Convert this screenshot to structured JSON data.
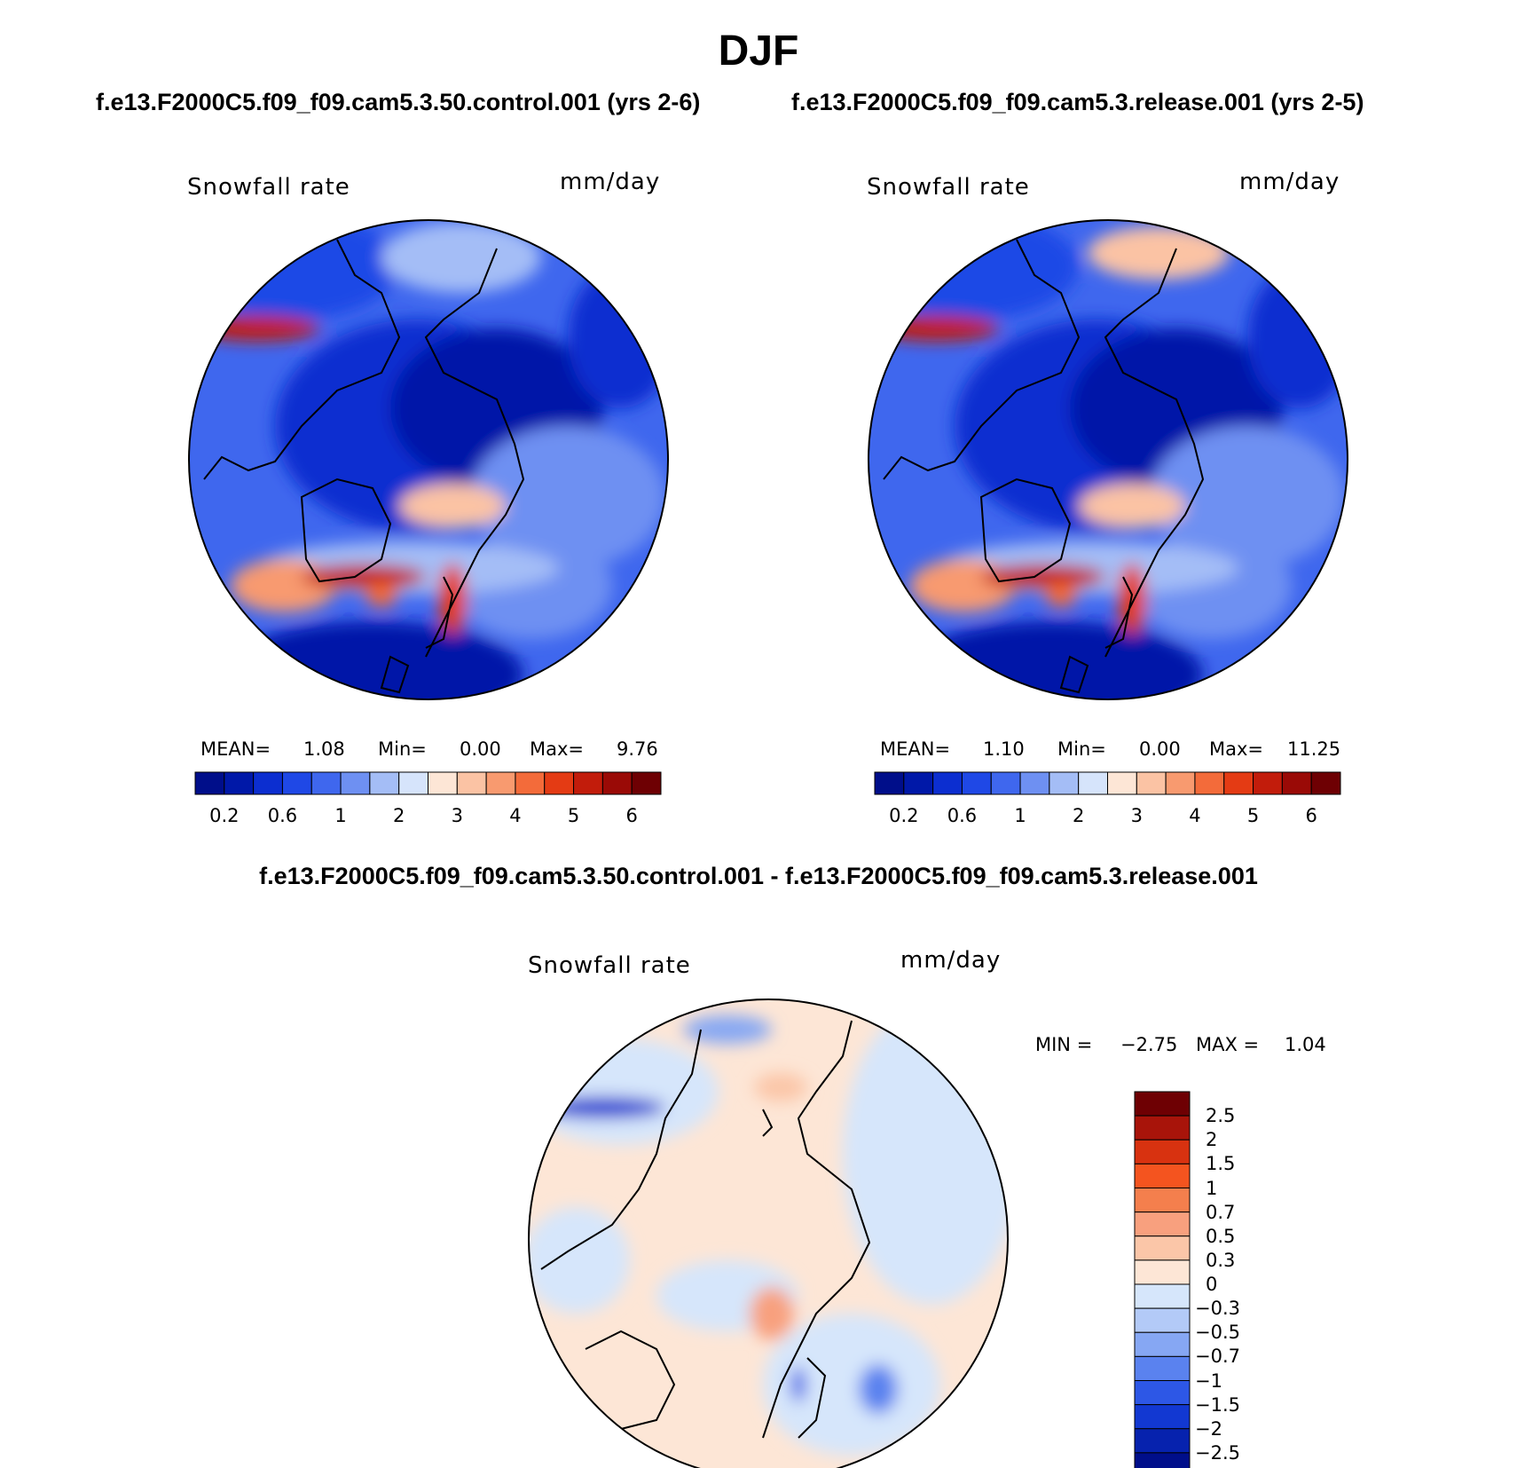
{
  "figure": {
    "title": "DJF",
    "case1_title": "f.e13.F2000C5.f09_f09.cam5.3.50.control.001 (yrs 2-6)",
    "case2_title": "f.e13.F2000C5.f09_f09.cam5.3.release.001 (yrs 2-5)",
    "diff_title": "f.e13.F2000C5.f09_f09.cam5.3.50.control.001 - f.e13.F2000C5.f09_f09.cam5.3.release.001"
  },
  "panels": [
    {
      "variable": "Snowfall rate",
      "units": "mm/day",
      "mean_label": "MEAN=",
      "mean": "1.08",
      "min_label": "Min=",
      "min": "0.00",
      "max_label": "Max=",
      "max": "9.76"
    },
    {
      "variable": "Snowfall rate",
      "units": "mm/day",
      "mean_label": "MEAN=",
      "mean": "1.10",
      "min_label": "Min=",
      "min": "0.00",
      "max_label": "Max=",
      "max": "11.25"
    }
  ],
  "diff_panel": {
    "variable": "Snowfall rate",
    "units": "mm/day",
    "min_label": "MIN =",
    "min": "−2.75",
    "max_label": "MAX =",
    "max": "1.04"
  },
  "colorbar": {
    "colors": [
      "#000e8a",
      "#0018a8",
      "#0c2ed0",
      "#1f48e6",
      "#3f67ee",
      "#6e90f2",
      "#a4bdf6",
      "#d6e4fb",
      "#fde6d6",
      "#fbc3a4",
      "#f89a6f",
      "#f36b3a",
      "#e43b14",
      "#c21c0b",
      "#9a0a06",
      "#6e0003"
    ],
    "labels": [
      "0.2",
      "0.6",
      "1",
      "2",
      "3",
      "4",
      "5",
      "6"
    ]
  },
  "diff_colorbar": {
    "colors": [
      "#6e0003",
      "#a8140a",
      "#d83210",
      "#f4541f",
      "#f47f4d",
      "#f8a07e",
      "#fbc6a8",
      "#fde6d6",
      "#d6e6fb",
      "#b3caf7",
      "#86a7f3",
      "#5a82ef",
      "#2d57e6",
      "#1238d2",
      "#0622ae",
      "#000e8a"
    ],
    "labels": [
      "2.5",
      "2",
      "1.5",
      "1",
      "0.7",
      "0.5",
      "0.3",
      "0",
      "−0.3",
      "−0.5",
      "−0.7",
      "−1",
      "−1.5",
      "−2",
      "−2.5"
    ]
  }
}
